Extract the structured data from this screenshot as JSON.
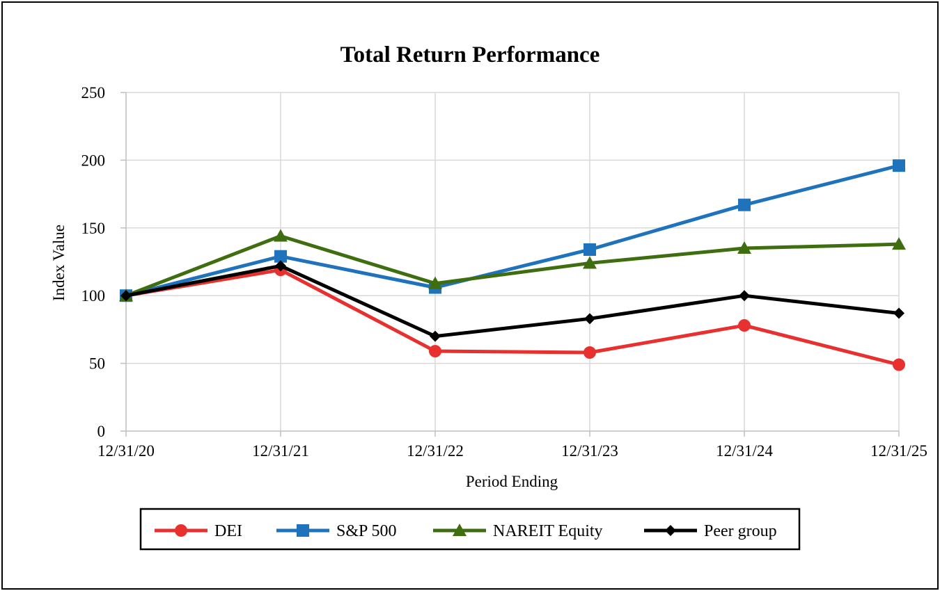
{
  "chart_data": {
    "type": "line",
    "title": "Total Return Performance",
    "xlabel": "Period Ending",
    "ylabel": "Index Value",
    "categories": [
      "12/31/20",
      "12/31/21",
      "12/31/22",
      "12/31/23",
      "12/31/24",
      "12/31/25"
    ],
    "ylim": [
      0,
      250
    ],
    "yticks": [
      0,
      50,
      100,
      150,
      200,
      250
    ],
    "grid": true,
    "legend": "bottom",
    "series": [
      {
        "name": "DEI",
        "marker": "circle",
        "color": "#e8302f",
        "values": [
          100,
          119,
          59,
          58,
          78,
          49
        ]
      },
      {
        "name": "S&P 500",
        "marker": "square",
        "color": "#1f72bc",
        "values": [
          100,
          129,
          106,
          134,
          167,
          196
        ]
      },
      {
        "name": "NAREIT Equity",
        "marker": "triangle",
        "color": "#3f6e10",
        "values": [
          100,
          144,
          109,
          124,
          135,
          138
        ]
      },
      {
        "name": "Peer group",
        "marker": "diamond",
        "color": "#000000",
        "values": [
          100,
          122,
          70,
          83,
          100,
          87
        ]
      }
    ]
  }
}
